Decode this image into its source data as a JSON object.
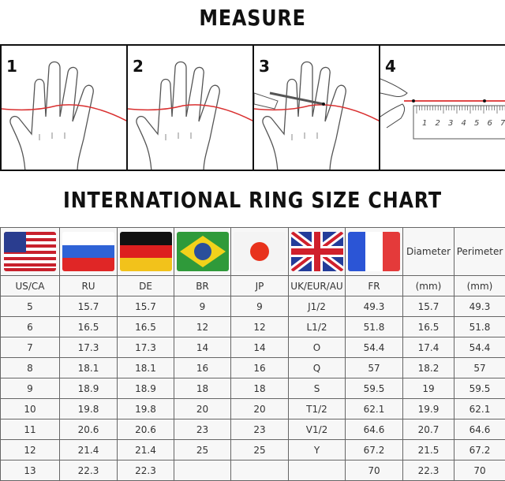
{
  "title_measure": "MEASURE",
  "steps": [
    "1",
    "2",
    "3",
    "4"
  ],
  "ruler_numbers": [
    "1",
    "2",
    "3",
    "4",
    "5",
    "6",
    "7"
  ],
  "title_chart": "INTERNATIONAL RING SIZE CHART",
  "flags": [
    "us-flag",
    "russia-flag",
    "germany-flag",
    "brazil-flag",
    "japan-flag",
    "uk-flag",
    "france-flag"
  ],
  "header_extra": [
    "Diameter",
    "Perimeter"
  ],
  "columns": [
    "US/CA",
    "RU",
    "DE",
    "BR",
    "JP",
    "UK/EUR/AU",
    "FR",
    "(mm)",
    "(mm)"
  ],
  "rows": [
    [
      "5",
      "15.7",
      "15.7",
      "9",
      "9",
      "J1/2",
      "49.3",
      "15.7",
      "49.3"
    ],
    [
      "6",
      "16.5",
      "16.5",
      "12",
      "12",
      "L1/2",
      "51.8",
      "16.5",
      "51.8"
    ],
    [
      "7",
      "17.3",
      "17.3",
      "14",
      "14",
      "O",
      "54.4",
      "17.4",
      "54.4"
    ],
    [
      "8",
      "18.1",
      "18.1",
      "16",
      "16",
      "Q",
      "57",
      "18.2",
      "57"
    ],
    [
      "9",
      "18.9",
      "18.9",
      "18",
      "18",
      "S",
      "59.5",
      "19",
      "59.5"
    ],
    [
      "10",
      "19.8",
      "19.8",
      "20",
      "20",
      "T1/2",
      "62.1",
      "19.9",
      "62.1"
    ],
    [
      "11",
      "20.6",
      "20.6",
      "23",
      "23",
      "V1/2",
      "64.6",
      "20.7",
      "64.6"
    ],
    [
      "12",
      "21.4",
      "21.4",
      "25",
      "25",
      "Y",
      "67.2",
      "21.5",
      "67.2"
    ],
    [
      "13",
      "22.3",
      "22.3",
      "",
      "",
      "",
      "70",
      "22.3",
      "70"
    ]
  ]
}
